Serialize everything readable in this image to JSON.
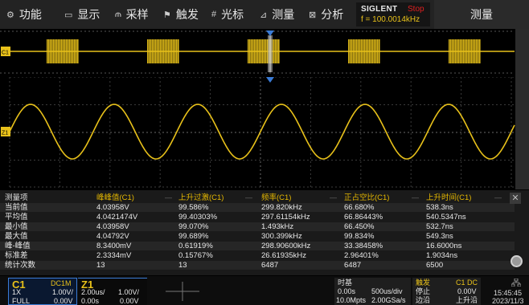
{
  "menu": [
    {
      "icon": "gear-icon",
      "glyph": "⚙",
      "label": "功能"
    },
    {
      "icon": "display-icon",
      "glyph": "▭",
      "label": "显示"
    },
    {
      "icon": "acquire-icon",
      "glyph": "⫙",
      "label": "采样"
    },
    {
      "icon": "trigger-flag-icon",
      "glyph": "⚑",
      "label": "触发"
    },
    {
      "icon": "cursor-icon",
      "glyph": "#",
      "label": "光标"
    },
    {
      "icon": "measure-icon",
      "glyph": "⊿",
      "label": "测量"
    },
    {
      "icon": "analysis-icon",
      "glyph": "⊠",
      "label": "分析"
    }
  ],
  "brand": {
    "name": "SIGLENT",
    "status": "Stop",
    "freq": "f = 100.0014kHz"
  },
  "panel_title": "测量",
  "channel_markers": {
    "overview": "C1",
    "main": "Z1"
  },
  "measurements": {
    "headers": [
      "测量项",
      "峰峰值(C1)",
      "上升过激(C1)",
      "频率(C1)",
      "正占空比(C1)",
      "上升时间(C1)"
    ],
    "rows": [
      {
        "label": "当前值",
        "values": [
          "4.03958V",
          "99.586%",
          "299.820kHz",
          "66.680%",
          "538.3ns"
        ]
      },
      {
        "label": "平均值",
        "values": [
          "4.0421474V",
          "99.40303%",
          "297.61154kHz",
          "66.86443%",
          "540.5347ns"
        ]
      },
      {
        "label": "最小值",
        "values": [
          "4.03958V",
          "99.070%",
          "1.493kHz",
          "66.450%",
          "532.7ns"
        ]
      },
      {
        "label": "最大值",
        "values": [
          "4.04792V",
          "99.689%",
          "300.399kHz",
          "99.834%",
          "549.3ns"
        ]
      },
      {
        "label": "峰-峰值",
        "values": [
          "8.3400mV",
          "0.61919%",
          "298.90600kHz",
          "33.38458%",
          "16.6000ns"
        ]
      },
      {
        "label": "标准差",
        "values": [
          "2.3334mV",
          "0.15767%",
          "26.61935kHz",
          "2.96401%",
          "1.9034ns"
        ]
      },
      {
        "label": "统计次数",
        "values": [
          "13",
          "13",
          "6487",
          "6487",
          "6500"
        ]
      }
    ]
  },
  "close_glyph": "✕",
  "ch1": {
    "name": "C1",
    "coupling": "DC1M",
    "probe": "1X",
    "scale": "1.00V/",
    "bw": "FULL",
    "offset": "0.00V"
  },
  "z1": {
    "name": "Z1",
    "time": "2.00us/",
    "volt": "1.00V/",
    "delay": "0.00s",
    "offset": "0.00V"
  },
  "timebase": {
    "title": "时基",
    "delay": "0.00s",
    "scale": "500us/div",
    "mem": "10.0Mpts",
    "rate": "2.00GSa/s"
  },
  "trigger": {
    "title": "触发",
    "src": "C1 DC",
    "mode": "停止",
    "level": "0.00V",
    "type": "边沿",
    "slope": "上升沿"
  },
  "clock": {
    "time": "15:45:45",
    "date": "2023/11/3"
  },
  "colors": {
    "ch1": "#e8c11a",
    "accent": "#3a7bd5",
    "stop": "#e02020"
  }
}
